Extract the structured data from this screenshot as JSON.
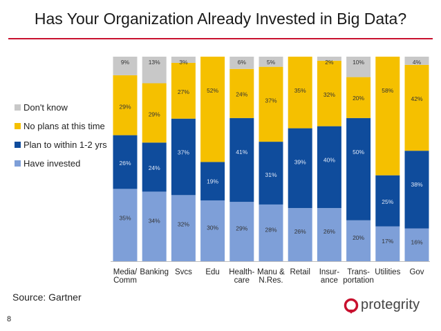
{
  "title": "Has Your Organization Already Invested in Big Data?",
  "source": "Source: Gartner",
  "page_number": "8",
  "logo_text": "protegrity",
  "colors": {
    "dont_know": "#c8c8c8",
    "no_plans": "#f5c000",
    "plan": "#0f4c9c",
    "invested": "#7e9fd8",
    "title_rule": "#c8102e",
    "logo_mark": "#c8102e"
  },
  "chart_data": {
    "type": "bar",
    "stacked": true,
    "categories": [
      "Media/\nComm",
      "Banking",
      "Svcs",
      "Edu",
      "Health-\ncare",
      "Manu &\nN.Res.",
      "Retail",
      "Insur-\nance",
      "Trans-\nportation",
      "Utilities",
      "Gov"
    ],
    "series": [
      {
        "name": "Have invested",
        "values": [
          35,
          34,
          32,
          30,
          29,
          28,
          26,
          26,
          20,
          17,
          16
        ],
        "labels": [
          "35%",
          "34%",
          "32%",
          "30%",
          "29%",
          "28%",
          "26%",
          "26%",
          "20%",
          "17%",
          "16%"
        ]
      },
      {
        "name": "Plan to within 1-2 yrs",
        "values": [
          26,
          24,
          37,
          19,
          41,
          31,
          39,
          40,
          50,
          25,
          38
        ],
        "labels": [
          "26%",
          "24%",
          "37%",
          "19%",
          "41%",
          "31%",
          "39%",
          "40%",
          "50%",
          "25%",
          "38%"
        ]
      },
      {
        "name": "No plans at this time",
        "values": [
          29,
          29,
          27,
          52,
          24,
          37,
          35,
          32,
          20,
          58,
          42
        ],
        "labels": [
          "29%",
          "29%",
          "27%",
          "52%",
          "24%",
          "37%",
          "35%",
          "32%",
          "20%",
          "58%",
          "42%"
        ]
      },
      {
        "name": "Don't know",
        "values": [
          9,
          13,
          3,
          0,
          6,
          5,
          0,
          2,
          10,
          0,
          4
        ],
        "labels": [
          "9%",
          "13%",
          "3%",
          "",
          "6%",
          "5%",
          "",
          "2%",
          "10%",
          "",
          "4%"
        ]
      }
    ],
    "legend": [
      "Don't know",
      "No plans at this time",
      "Plan to within 1-2 yrs",
      "Have invested"
    ],
    "legend_position": "left",
    "ylim": [
      0,
      100
    ],
    "grid": false
  }
}
